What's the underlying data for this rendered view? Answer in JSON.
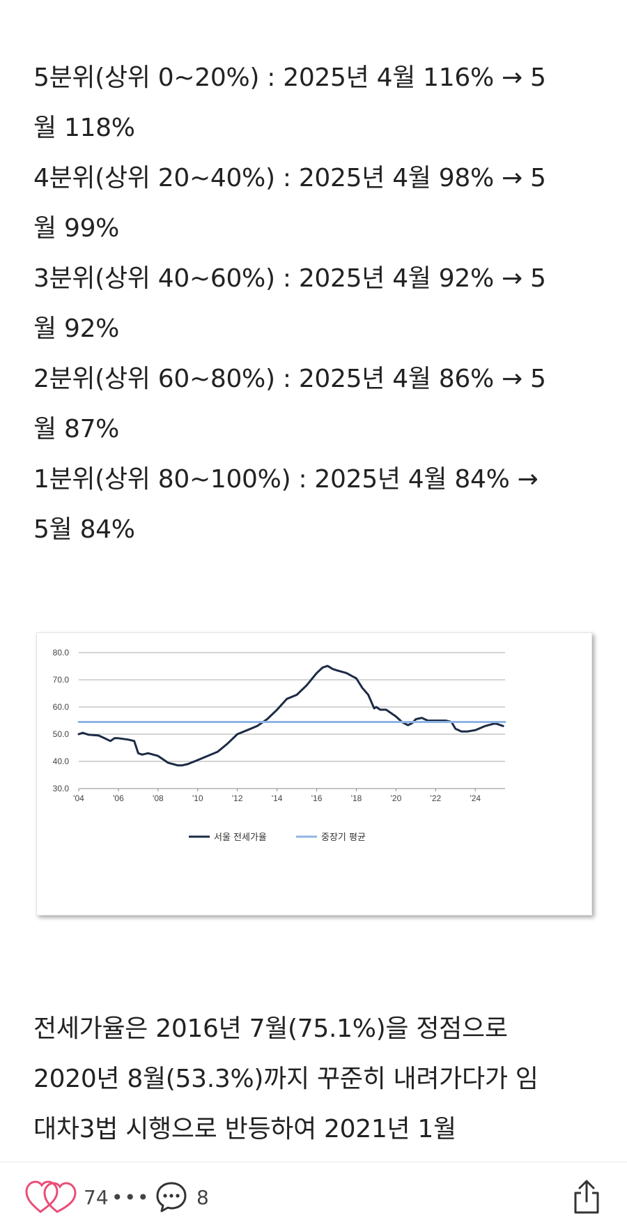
{
  "quintile_lines": [
    "5분위(상위 0~20%) : 2025년 4월 116% → 5",
    "월 118%",
    "4분위(상위 20~40%) : 2025년 4월 98% → 5",
    "월 99%",
    "3분위(상위 40~60%) : 2025년 4월 92% → 5",
    "월 92%",
    "2분위(상위 60~80%) : 2025년 4월 86% → 5",
    "월 87%",
    "1분위(상위 80~100%) : 2025년 4월 84% →",
    "5월 84%"
  ],
  "chart_data": {
    "type": "line",
    "title": "",
    "xlabel": "",
    "ylabel": "",
    "ylim": [
      30,
      80
    ],
    "xlim": [
      2004,
      2025.5
    ],
    "yticks": [
      "30.0",
      "40.0",
      "50.0",
      "60.0",
      "70.0",
      "80.0"
    ],
    "xticks": [
      "'04",
      "'06",
      "'08",
      "'10",
      "'12",
      "'14",
      "'16",
      "'18",
      "'20",
      "'22",
      "'24"
    ],
    "grid": true,
    "legend_position": "bottom",
    "series": [
      {
        "name": "서울 전세가율",
        "color": "#1c2b45",
        "x": [
          2004.0,
          2004.2,
          2004.5,
          2005.0,
          2005.3,
          2005.6,
          2005.8,
          2006.0,
          2006.5,
          2006.8,
          2007.0,
          2007.2,
          2007.5,
          2008.0,
          2008.5,
          2009.0,
          2009.2,
          2009.5,
          2010.0,
          2010.5,
          2011.0,
          2011.5,
          2012.0,
          2012.5,
          2013.0,
          2013.5,
          2014.0,
          2014.5,
          2015.0,
          2015.5,
          2016.0,
          2016.3,
          2016.55,
          2016.8,
          2017.0,
          2017.5,
          2018.0,
          2018.3,
          2018.6,
          2018.9,
          2019.0,
          2019.2,
          2019.5,
          2020.0,
          2020.3,
          2020.6,
          2020.8,
          2021.0,
          2021.3,
          2021.6,
          2022.0,
          2022.5,
          2022.8,
          2023.0,
          2023.3,
          2023.6,
          2024.0,
          2024.5,
          2025.0,
          2025.4
        ],
        "values": [
          50.0,
          50.5,
          49.8,
          49.5,
          48.5,
          47.5,
          48.5,
          48.5,
          48.0,
          47.5,
          43.0,
          42.5,
          43.0,
          42.0,
          39.5,
          38.5,
          38.5,
          39.0,
          40.5,
          42.0,
          43.5,
          46.5,
          50.0,
          51.5,
          53.0,
          55.5,
          59.0,
          63.0,
          64.5,
          68.0,
          72.5,
          74.5,
          75.1,
          74.0,
          73.5,
          72.5,
          70.5,
          67.0,
          64.5,
          59.5,
          60.0,
          59.0,
          59.0,
          56.5,
          54.5,
          53.3,
          54.0,
          55.5,
          56.0,
          55.0,
          55.0,
          55.0,
          54.5,
          52.0,
          51.0,
          51.0,
          51.5,
          53.0,
          54.0,
          53.0
        ]
      },
      {
        "name": "중장기 평균",
        "color": "#8eb4e3",
        "x": [
          2004.0,
          2025.5
        ],
        "values": [
          54.5,
          54.5
        ]
      }
    ]
  },
  "bottom_lines": [
    "전세가율은 2016년 7월(75.1%)을 정점으로",
    "2020년 8월(53.3%)까지 꾸준히 내려가다가 임",
    "대차3법 시행으로 반등하여 2021년 1월"
  ],
  "actions": {
    "like_count": "74",
    "comment_count": "8",
    "accent_color": "#e94e77"
  }
}
